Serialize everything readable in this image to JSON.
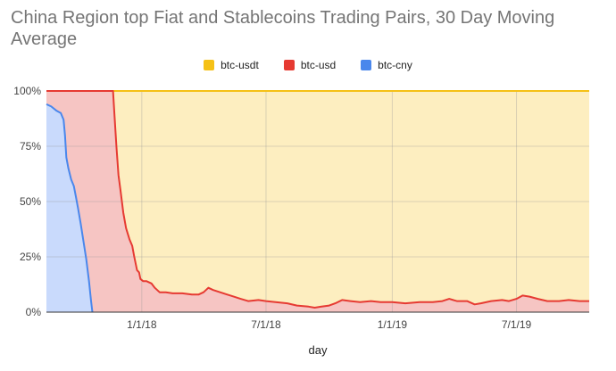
{
  "chart_data": {
    "type": "area",
    "stacked": "percent",
    "title": "China Region top Fiat and Stablecoins Trading Pairs, 30 Day Moving Average",
    "xlabel": "day",
    "ylabel": "",
    "ylim": [
      0,
      100
    ],
    "y_ticks": [
      "0%",
      "25%",
      "50%",
      "75%",
      "100%"
    ],
    "xlim": [
      "2017-08-15",
      "2019-10-15"
    ],
    "x_ticks": [
      {
        "label": "1/1/18",
        "date": "2018-01-01"
      },
      {
        "label": "7/1/18",
        "date": "2018-07-01"
      },
      {
        "label": "1/1/19",
        "date": "2019-01-01"
      },
      {
        "label": "7/1/19",
        "date": "2019-07-01"
      }
    ],
    "grid": true,
    "legend_position": "top",
    "series": [
      {
        "name": "btc-usdt",
        "color": "#f5c116",
        "fill": "#fdeec0",
        "note": "remainder to 100%"
      },
      {
        "name": "btc-usd",
        "color": "#e63a32",
        "fill": "#f6c5c3",
        "points": [
          [
            "2017-08-15",
            100
          ],
          [
            "2017-11-20",
            100
          ],
          [
            "2017-11-22",
            90
          ],
          [
            "2017-11-25",
            75
          ],
          [
            "2017-11-28",
            62
          ],
          [
            "2017-12-01",
            55
          ],
          [
            "2017-12-05",
            45
          ],
          [
            "2017-12-09",
            38
          ],
          [
            "2017-12-14",
            33
          ],
          [
            "2017-12-18",
            30
          ],
          [
            "2017-12-21",
            25
          ],
          [
            "2017-12-25",
            19
          ],
          [
            "2017-12-28",
            18
          ],
          [
            "2017-12-30",
            15
          ],
          [
            "2018-01-03",
            14
          ],
          [
            "2018-01-08",
            14
          ],
          [
            "2018-01-15",
            13
          ],
          [
            "2018-01-20",
            11
          ],
          [
            "2018-01-27",
            9
          ],
          [
            "2018-02-05",
            9
          ],
          [
            "2018-02-15",
            8.5
          ],
          [
            "2018-03-01",
            8.5
          ],
          [
            "2018-03-15",
            8
          ],
          [
            "2018-03-25",
            8
          ],
          [
            "2018-04-01",
            9
          ],
          [
            "2018-04-08",
            11
          ],
          [
            "2018-04-15",
            10
          ],
          [
            "2018-04-25",
            9
          ],
          [
            "2018-05-05",
            8
          ],
          [
            "2018-05-15",
            7
          ],
          [
            "2018-05-25",
            6
          ],
          [
            "2018-06-05",
            5
          ],
          [
            "2018-06-20",
            5.5
          ],
          [
            "2018-07-01",
            5
          ],
          [
            "2018-07-15",
            4.5
          ],
          [
            "2018-08-01",
            4
          ],
          [
            "2018-08-15",
            3
          ],
          [
            "2018-09-01",
            2.5
          ],
          [
            "2018-09-10",
            2
          ],
          [
            "2018-09-20",
            2.5
          ],
          [
            "2018-10-01",
            3
          ],
          [
            "2018-10-10",
            4
          ],
          [
            "2018-10-20",
            5.5
          ],
          [
            "2018-11-01",
            5
          ],
          [
            "2018-11-15",
            4.5
          ],
          [
            "2018-12-01",
            5
          ],
          [
            "2018-12-15",
            4.5
          ],
          [
            "2019-01-01",
            4.5
          ],
          [
            "2019-01-20",
            4
          ],
          [
            "2019-02-10",
            4.5
          ],
          [
            "2019-03-01",
            4.5
          ],
          [
            "2019-03-15",
            5
          ],
          [
            "2019-03-25",
            6
          ],
          [
            "2019-04-05",
            5
          ],
          [
            "2019-04-20",
            5
          ],
          [
            "2019-05-01",
            3.5
          ],
          [
            "2019-05-10",
            4
          ],
          [
            "2019-05-25",
            5
          ],
          [
            "2019-06-10",
            5.5
          ],
          [
            "2019-06-20",
            5
          ],
          [
            "2019-07-01",
            6
          ],
          [
            "2019-07-10",
            7.5
          ],
          [
            "2019-07-20",
            7
          ],
          [
            "2019-08-01",
            6
          ],
          [
            "2019-08-15",
            5
          ],
          [
            "2019-09-01",
            5
          ],
          [
            "2019-09-15",
            5.5
          ],
          [
            "2019-10-01",
            5
          ],
          [
            "2019-10-15",
            5
          ]
        ]
      },
      {
        "name": "btc-cny",
        "color": "#4a87ec",
        "fill": "#c9dafc",
        "points": [
          [
            "2017-08-15",
            94
          ],
          [
            "2017-08-22",
            93
          ],
          [
            "2017-08-30",
            91
          ],
          [
            "2017-09-05",
            90
          ],
          [
            "2017-09-09",
            87
          ],
          [
            "2017-09-11",
            80
          ],
          [
            "2017-09-13",
            70
          ],
          [
            "2017-09-16",
            65
          ],
          [
            "2017-09-20",
            60
          ],
          [
            "2017-09-24",
            57
          ],
          [
            "2017-09-27",
            52
          ],
          [
            "2017-09-30",
            47
          ],
          [
            "2017-10-04",
            40
          ],
          [
            "2017-10-08",
            32
          ],
          [
            "2017-10-12",
            24
          ],
          [
            "2017-10-16",
            14
          ],
          [
            "2017-10-19",
            5
          ],
          [
            "2017-10-21",
            0
          ],
          [
            "2019-10-15",
            0
          ]
        ]
      }
    ]
  }
}
